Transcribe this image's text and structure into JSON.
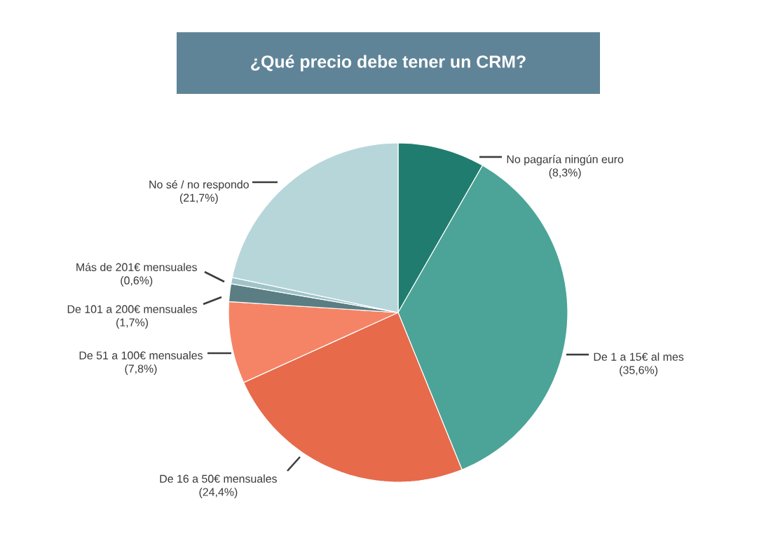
{
  "chart_data": {
    "type": "pie",
    "title": "¿Qué precio debe tener un CRM?",
    "categories": [
      "No pagaría ningún euro",
      "De 1 a 15€ al mes",
      "De 16 a 50€ mensuales",
      "De 51 a 100€ mensuales",
      "De 101 a 200€ mensuales",
      "Más de 201€ mensuales",
      "No sé / no respondo"
    ],
    "values": [
      8.3,
      35.6,
      24.4,
      7.8,
      1.7,
      0.6,
      21.7
    ],
    "value_labels": [
      "(8,3%)",
      "(35,6%)",
      "(24,4%)",
      "(7,8%)",
      "(1,7%)",
      "(0,6%)",
      "(21,7%)"
    ],
    "colors": [
      "#217c70",
      "#4ba497",
      "#e76a4b",
      "#f58466",
      "#5a7e83",
      "#9fc3c8",
      "#b7d6da"
    ]
  }
}
